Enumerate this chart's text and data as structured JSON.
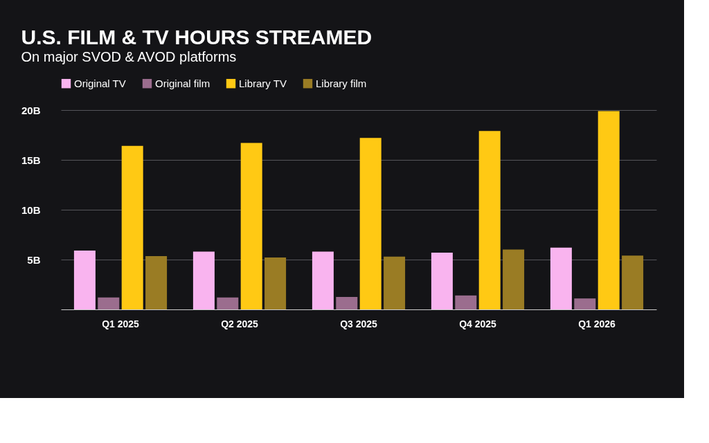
{
  "chart_data": {
    "type": "bar",
    "title": "U.S. FILM & TV HOURS STREAMED",
    "subtitle": "On major SVOD & AVOD platforms",
    "categories": [
      "Q1 2025",
      "Q2 2025",
      "Q3 2025",
      "Q4 2025",
      "Q1 2026"
    ],
    "series": [
      {
        "name": "Original TV",
        "color": "#f9b4ef",
        "values": [
          5.9,
          5.8,
          5.8,
          5.7,
          6.2
        ]
      },
      {
        "name": "Original film",
        "color": "#9b6d8e",
        "values": [
          1.2,
          1.2,
          1.25,
          1.4,
          1.1
        ]
      },
      {
        "name": "Library TV",
        "color": "#ffc914",
        "values": [
          16.4,
          16.7,
          17.2,
          17.9,
          19.9
        ]
      },
      {
        "name": "Library film",
        "color": "#9a7c24",
        "values": [
          5.35,
          5.2,
          5.3,
          6.0,
          5.4
        ]
      }
    ],
    "ylim": [
      0,
      20
    ],
    "yticks": [
      {
        "value": 5,
        "label": "5B"
      },
      {
        "value": 10,
        "label": "10B"
      },
      {
        "value": 15,
        "label": "15B"
      },
      {
        "value": 20,
        "label": "20B"
      }
    ],
    "grid": "y",
    "legend": "top left"
  }
}
